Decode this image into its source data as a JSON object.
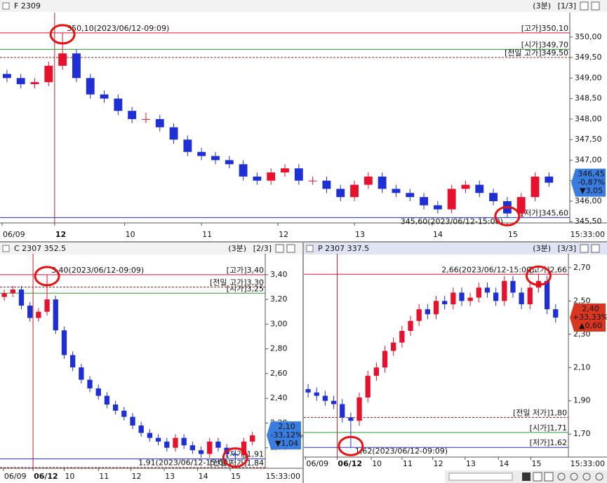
{
  "chart_data": [
    {
      "type": "candlestick",
      "title": "F 2309",
      "interval": "(3분)",
      "page": "[1/3]",
      "time": "15:33:00",
      "up_color": "#e8112d",
      "down_color": "#1f2fd6",
      "ylim": [
        345.47,
        350.56
      ],
      "xlim": [
        0,
        41
      ],
      "yticks": [
        {
          "value": 345.5,
          "label": "345,50"
        },
        {
          "value": 346,
          "label": "346,00"
        },
        {
          "value": 346.5,
          "label": "346,50"
        },
        {
          "value": 347,
          "label": "347,00"
        },
        {
          "value": 347.5,
          "label": "347,50"
        },
        {
          "value": 348,
          "label": "348,00"
        },
        {
          "value": 348.5,
          "label": "348,50"
        },
        {
          "value": 349,
          "label": "349,00"
        },
        {
          "value": 349.5,
          "label": "349,50"
        },
        {
          "value": 350,
          "label": "350,00"
        }
      ],
      "xticks": [
        {
          "value": 0.15,
          "label": "06/09"
        },
        {
          "value": 3.93,
          "label": "12"
        },
        {
          "value": 8.97,
          "label": "10"
        },
        {
          "value": 14.5,
          "label": "11"
        },
        {
          "value": 20.0,
          "label": "12"
        },
        {
          "value": 25.5,
          "label": "13"
        },
        {
          "value": 31.1,
          "label": "14"
        },
        {
          "value": 36.5,
          "label": "15"
        }
      ],
      "highlight_tick": 1,
      "open": [
        349.1,
        349.0,
        348.85,
        348.9,
        349.3,
        349.6,
        349.0,
        348.6,
        348.5,
        348.2,
        348.0,
        348.0,
        347.8,
        347.5,
        347.2,
        347.1,
        347.0,
        346.9,
        346.6,
        346.5,
        346.7,
        346.8,
        346.5,
        346.5,
        346.3,
        346.1,
        346.4,
        346.6,
        346.3,
        346.2,
        346.1,
        345.9,
        345.8,
        346.3,
        346.4,
        346.2,
        346.0,
        345.7,
        346.1,
        346.6
      ],
      "high": [
        349.2,
        349.1,
        349.0,
        349.4,
        350.1,
        349.7,
        349.1,
        348.7,
        348.6,
        348.3,
        348.15,
        348.1,
        347.9,
        347.6,
        347.3,
        347.2,
        347.1,
        347.0,
        346.7,
        346.8,
        346.9,
        346.9,
        346.6,
        346.6,
        346.4,
        346.5,
        346.7,
        346.7,
        346.4,
        346.3,
        346.2,
        346.0,
        346.4,
        346.5,
        346.5,
        346.3,
        346.1,
        346.2,
        346.7,
        346.7
      ],
      "low": [
        348.9,
        348.75,
        348.75,
        348.8,
        349.2,
        348.9,
        348.5,
        348.4,
        348.1,
        347.9,
        347.9,
        347.7,
        347.4,
        347.1,
        347.0,
        346.9,
        346.8,
        346.5,
        346.4,
        346.4,
        346.6,
        346.4,
        346.4,
        346.2,
        346.0,
        346.0,
        346.3,
        346.2,
        346.1,
        346.0,
        345.8,
        345.7,
        345.7,
        346.2,
        346.1,
        345.9,
        345.6,
        345.6,
        346.0,
        346.35
      ],
      "close": [
        349.0,
        348.85,
        348.9,
        349.3,
        349.6,
        349.0,
        348.6,
        348.5,
        348.2,
        348.0,
        348.0,
        347.8,
        347.5,
        347.2,
        347.1,
        347.0,
        346.9,
        346.6,
        346.5,
        346.7,
        346.8,
        346.5,
        346.5,
        346.3,
        346.1,
        346.4,
        346.6,
        346.3,
        346.2,
        346.1,
        345.9,
        345.8,
        346.3,
        346.4,
        346.2,
        346.0,
        345.7,
        346.1,
        346.6,
        346.45
      ],
      "ref_lines": [
        {
          "value": 350.1,
          "label": "[고가]350,10",
          "color": "#e8112d",
          "style": "solid",
          "note": "350,10(2023/06/12-09:09)"
        },
        {
          "value": 349.7,
          "label": "[시가]349,70",
          "color": "#2a9d2a",
          "style": "solid"
        },
        {
          "value": 349.5,
          "label": "[전일 고가]349,50",
          "color": "#a02020",
          "style": "dashed"
        },
        {
          "value": 345.6,
          "label": "[저가]345,60",
          "color": "#1f2fd6",
          "style": "solid",
          "note": "345,60(2023/06/12-15:00)"
        }
      ],
      "price_box": {
        "value": 346.45,
        "label": "346,45",
        "change_pct": "-0,87%",
        "change": "▼3,05",
        "color": "#3a7de0"
      }
    },
    {
      "type": "candlestick",
      "title": "C 2307 352.5",
      "interval": "(3분)",
      "page": "[2/3]",
      "time": "15:33:00",
      "up_color": "#e8112d",
      "down_color": "#1f2fd6",
      "ylim": [
        1.834,
        3.558
      ],
      "xlim": [
        0,
        31
      ],
      "yticks": [
        {
          "value": 2.0,
          "label": "2,00"
        },
        {
          "value": 2.2,
          "label": "2,20"
        },
        {
          "value": 2.4,
          "label": "2,40"
        },
        {
          "value": 2.6,
          "label": "2,60"
        },
        {
          "value": 2.8,
          "label": "2,80"
        },
        {
          "value": 3.0,
          "label": "3,00"
        },
        {
          "value": 3.2,
          "label": "3,20"
        },
        {
          "value": 3.4,
          "label": "3,40"
        }
      ],
      "xticks": [
        {
          "value": 0.4,
          "label": "06/09"
        },
        {
          "value": 3.86,
          "label": "06/12"
        },
        {
          "value": 7.5,
          "label": "10"
        },
        {
          "value": 11.5,
          "label": "11"
        },
        {
          "value": 15.3,
          "label": "12"
        },
        {
          "value": 19.2,
          "label": "13"
        },
        {
          "value": 23.1,
          "label": "14"
        },
        {
          "value": 26.9,
          "label": "15"
        }
      ],
      "highlight_tick": 1,
      "open": [
        3.22,
        3.25,
        3.28,
        3.15,
        3.05,
        3.1,
        3.2,
        2.95,
        2.75,
        2.65,
        2.55,
        2.48,
        2.42,
        2.35,
        2.3,
        2.25,
        2.18,
        2.12,
        2.08,
        2.05,
        2.0,
        2.08,
        2.02,
        1.98,
        1.95,
        2.05,
        2.0,
        1.95,
        1.94,
        2.05
      ],
      "high": [
        3.28,
        3.31,
        3.31,
        3.18,
        3.13,
        3.4,
        3.23,
        2.98,
        2.78,
        2.68,
        2.58,
        2.51,
        2.45,
        2.38,
        2.33,
        2.28,
        2.21,
        2.15,
        2.11,
        2.08,
        2.11,
        2.11,
        2.05,
        2.01,
        2.08,
        2.08,
        2.03,
        1.98,
        2.08,
        2.13
      ],
      "low": [
        3.19,
        3.22,
        3.12,
        3.02,
        3.02,
        3.07,
        2.92,
        2.72,
        2.62,
        2.52,
        2.45,
        2.39,
        2.32,
        2.27,
        2.22,
        2.15,
        2.09,
        2.05,
        2.02,
        1.97,
        1.97,
        1.99,
        1.95,
        1.92,
        1.92,
        1.97,
        1.92,
        1.91,
        1.91,
        2.02
      ],
      "close": [
        3.25,
        3.28,
        3.15,
        3.05,
        3.1,
        3.2,
        2.95,
        2.75,
        2.65,
        2.55,
        2.48,
        2.42,
        2.35,
        2.3,
        2.25,
        2.18,
        2.12,
        2.08,
        2.05,
        2.0,
        2.08,
        2.02,
        1.98,
        1.95,
        2.05,
        2.0,
        1.95,
        1.94,
        2.05,
        2.1
      ],
      "ref_lines": [
        {
          "value": 3.4,
          "label": "[고가]3,40",
          "color": "#e8112d",
          "style": "solid",
          "note": "3,40(2023/06/12-09:09)"
        },
        {
          "value": 3.3,
          "label": "[전일 고가]3,30",
          "color": "#a02020",
          "style": "dashed"
        },
        {
          "value": 3.25,
          "label": "[시가]3,25",
          "color": "#2a9d2a",
          "style": "solid"
        },
        {
          "value": 1.91,
          "label": "[저가]1,91",
          "color": "#1f2fd6",
          "style": "solid",
          "note": "1,91(2023/06/12-15:00)"
        },
        {
          "value": 1.84,
          "label": "[전일 저가]1,84",
          "color": "#a02020",
          "style": "dashed"
        }
      ],
      "price_box": {
        "value": 2.1,
        "label": "2,10",
        "change_pct": "-33,12%",
        "change": "▼1,04",
        "color": "#3a7de0"
      }
    },
    {
      "type": "candlestick",
      "title": "P 2307 337.5",
      "interval": "(3분)",
      "page": "[3/3]",
      "time": "15:33:00",
      "up_color": "#e8112d",
      "down_color": "#1f2fd6",
      "ylim": [
        1.562,
        2.775
      ],
      "xlim": [
        0,
        31
      ],
      "yticks": [
        {
          "value": 1.7,
          "label": "1,70"
        },
        {
          "value": 1.9,
          "label": "1,90"
        },
        {
          "value": 2.1,
          "label": "2,10"
        },
        {
          "value": 2.3,
          "label": "2,30"
        },
        {
          "value": 2.5,
          "label": "2,50"
        },
        {
          "value": 2.7,
          "label": "2,70"
        }
      ],
      "xticks": [
        {
          "value": 0.2,
          "label": "06/09"
        },
        {
          "value": 3.9,
          "label": "06/12"
        },
        {
          "value": 7.9,
          "label": "10"
        },
        {
          "value": 11.5,
          "label": "11"
        },
        {
          "value": 15.1,
          "label": "12"
        },
        {
          "value": 18.9,
          "label": "13"
        },
        {
          "value": 22.8,
          "label": "14"
        },
        {
          "value": 26.6,
          "label": "15"
        }
      ],
      "highlight_tick": 1,
      "open": [
        1.97,
        1.95,
        1.93,
        1.9,
        1.88,
        1.8,
        1.78,
        1.92,
        2.05,
        2.1,
        2.2,
        2.25,
        2.32,
        2.38,
        2.45,
        2.42,
        2.5,
        2.48,
        2.55,
        2.5,
        2.52,
        2.58,
        2.55,
        2.5,
        2.62,
        2.55,
        2.48,
        2.58,
        2.62,
        2.45
      ],
      "high": [
        2.0,
        1.98,
        1.96,
        1.93,
        1.91,
        1.83,
        1.95,
        2.08,
        2.13,
        2.23,
        2.28,
        2.35,
        2.41,
        2.48,
        2.48,
        2.53,
        2.53,
        2.58,
        2.58,
        2.55,
        2.61,
        2.61,
        2.58,
        2.65,
        2.65,
        2.58,
        2.61,
        2.66,
        2.65,
        2.48
      ],
      "low": [
        1.92,
        1.9,
        1.87,
        1.85,
        1.77,
        1.62,
        1.75,
        1.89,
        2.02,
        2.07,
        2.17,
        2.22,
        2.29,
        2.35,
        2.39,
        2.39,
        2.45,
        2.45,
        2.47,
        2.47,
        2.49,
        2.52,
        2.47,
        2.47,
        2.52,
        2.45,
        2.45,
        2.55,
        2.42,
        2.37
      ],
      "close": [
        1.95,
        1.93,
        1.9,
        1.88,
        1.8,
        1.78,
        1.92,
        2.05,
        2.1,
        2.2,
        2.25,
        2.32,
        2.38,
        2.45,
        2.42,
        2.5,
        2.48,
        2.55,
        2.5,
        2.52,
        2.58,
        2.55,
        2.5,
        2.62,
        2.55,
        2.48,
        2.58,
        2.62,
        2.45,
        2.4
      ],
      "ref_lines": [
        {
          "value": 2.66,
          "label": "[고가]2,66",
          "color": "#e8112d",
          "style": "solid",
          "note": "2,66(2023/06/12-15:00)"
        },
        {
          "value": 1.8,
          "label": "[전일 저가]1,80",
          "color": "#a02020",
          "style": "dashed"
        },
        {
          "value": 1.71,
          "label": "[시가]1,71",
          "color": "#2a9d2a",
          "style": "solid"
        },
        {
          "value": 1.62,
          "label": "[저가]1,62",
          "color": "#1f2fd6",
          "style": "solid",
          "note": "1,62(2023/06/12-09:09)"
        }
      ],
      "price_box": {
        "value": 2.4,
        "label": "2,40",
        "change_pct": "+33,33%",
        "change": "▲0,60",
        "color": "#d9361f"
      }
    }
  ]
}
